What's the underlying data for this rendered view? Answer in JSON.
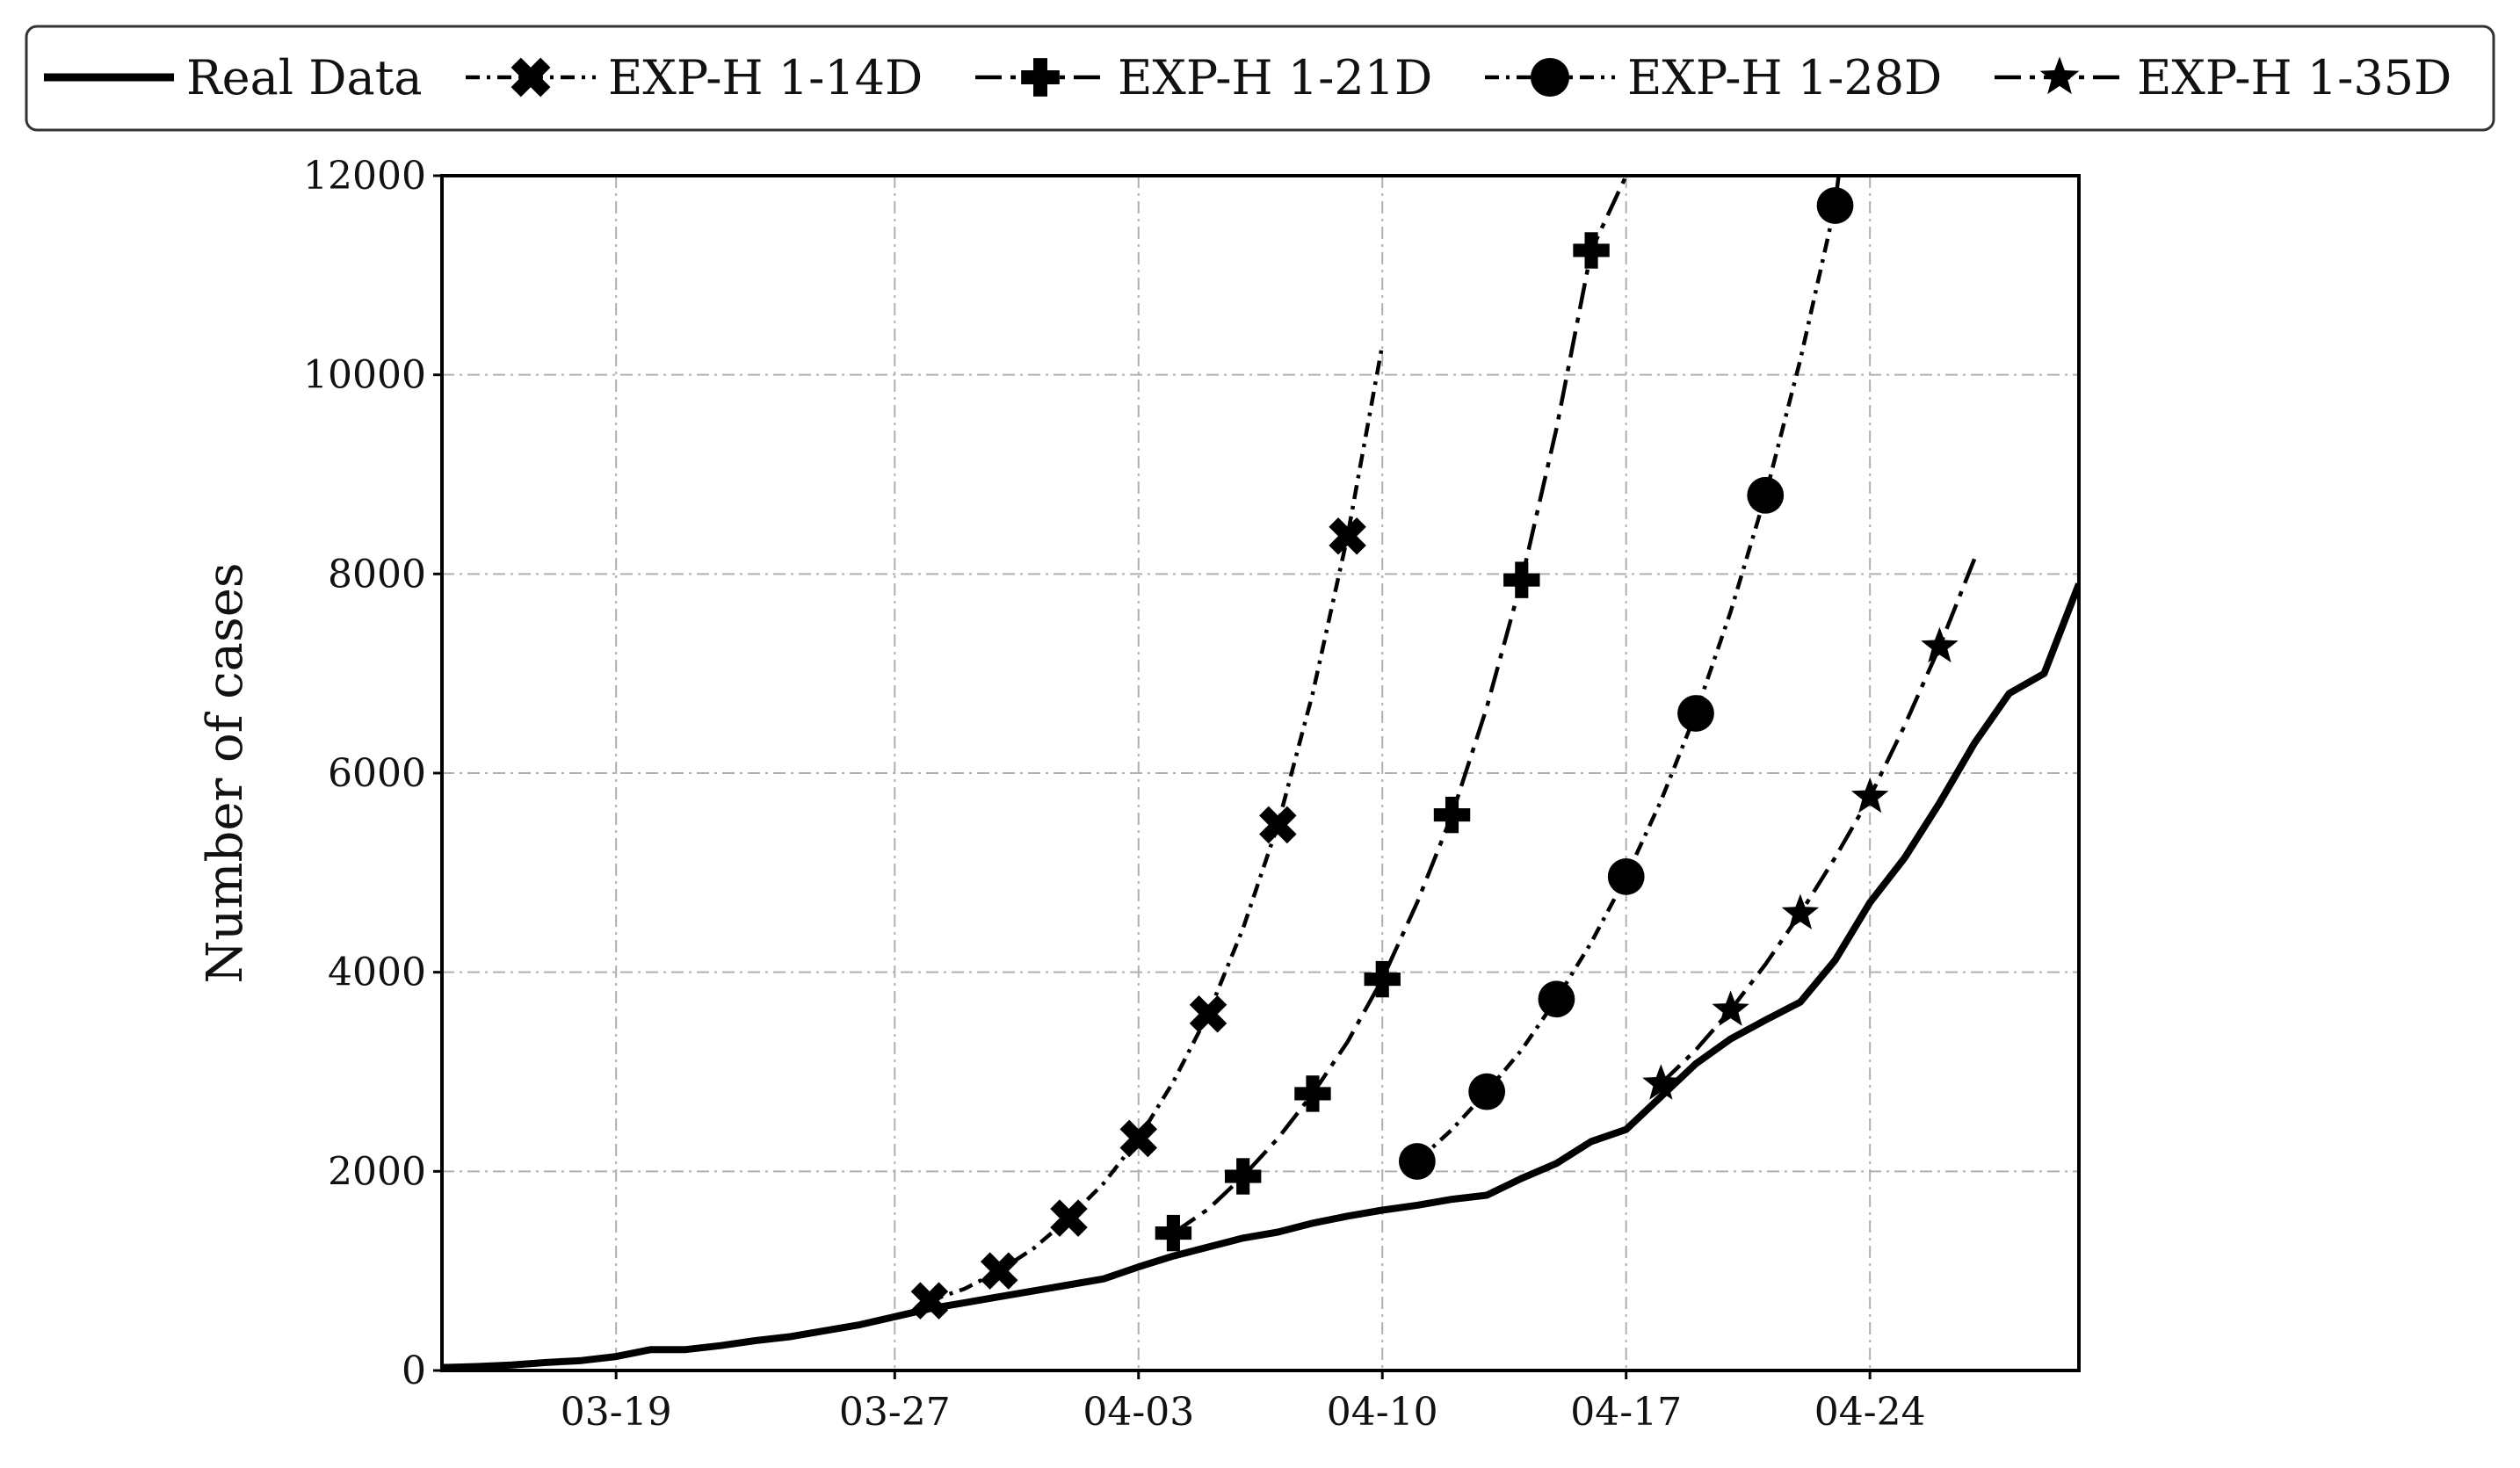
{
  "chart_data": {
    "type": "line",
    "title": "",
    "xlabel": "",
    "ylabel": "Number of cases",
    "ylim": [
      0,
      12000
    ],
    "xlim": [
      "03-14",
      "04-30"
    ],
    "x_ticks": [
      "03-19",
      "03-27",
      "04-03",
      "04-10",
      "04-17",
      "04-24"
    ],
    "y_ticks": [
      "0",
      "2000",
      "4000",
      "6000",
      "8000",
      "10000",
      "12000"
    ],
    "grid": true,
    "legend_position": "top",
    "series": [
      {
        "name": "Real Data",
        "marker": "none",
        "dash": "solid",
        "points": [
          [
            "03-14",
            30
          ],
          [
            "03-15",
            40
          ],
          [
            "03-16",
            55
          ],
          [
            "03-17",
            80
          ],
          [
            "03-18",
            100
          ],
          [
            "03-19",
            140
          ],
          [
            "03-20",
            210
          ],
          [
            "03-21",
            210
          ],
          [
            "03-22",
            250
          ],
          [
            "03-23",
            300
          ],
          [
            "03-24",
            340
          ],
          [
            "03-25",
            400
          ],
          [
            "03-26",
            460
          ],
          [
            "03-27",
            540
          ],
          [
            "03-28",
            620
          ],
          [
            "03-29",
            680
          ],
          [
            "03-30",
            740
          ],
          [
            "03-31",
            800
          ],
          [
            "04-01",
            860
          ],
          [
            "04-02",
            920
          ],
          [
            "04-03",
            1040
          ],
          [
            "04-04",
            1150
          ],
          [
            "04-05",
            1240
          ],
          [
            "04-06",
            1330
          ],
          [
            "04-07",
            1390
          ],
          [
            "04-08",
            1480
          ],
          [
            "04-09",
            1550
          ],
          [
            "04-10",
            1610
          ],
          [
            "04-11",
            1660
          ],
          [
            "04-12",
            1720
          ],
          [
            "04-13",
            1760
          ],
          [
            "04-14",
            1930
          ],
          [
            "04-15",
            2080
          ],
          [
            "04-16",
            2300
          ],
          [
            "04-17",
            2420
          ],
          [
            "04-18",
            2750
          ],
          [
            "04-19",
            3080
          ],
          [
            "04-20",
            3330
          ],
          [
            "04-21",
            3520
          ],
          [
            "04-22",
            3700
          ],
          [
            "04-23",
            4120
          ],
          [
            "04-24",
            4700
          ],
          [
            "04-25",
            5150
          ],
          [
            "04-26",
            5700
          ],
          [
            "04-27",
            6300
          ],
          [
            "04-28",
            6800
          ],
          [
            "04-29",
            7000
          ],
          [
            "04-30",
            7900
          ]
        ]
      },
      {
        "name": "EXP-H 1-14D",
        "marker": "x-filled",
        "dash": "dashdot-fine",
        "marker_dates": [
          "03-28",
          "03-30",
          "04-01",
          "04-03",
          "04-05",
          "04-07",
          "04-09"
        ],
        "points": [
          [
            "03-28",
            700
          ],
          [
            "03-29",
            820
          ],
          [
            "03-30",
            1000
          ],
          [
            "03-31",
            1230
          ],
          [
            "04-01",
            1530
          ],
          [
            "04-02",
            1880
          ],
          [
            "04-03",
            2330
          ],
          [
            "04-04",
            2900
          ],
          [
            "04-05",
            3580
          ],
          [
            "04-06",
            4440
          ],
          [
            "04-07",
            5480
          ],
          [
            "04-08",
            6800
          ],
          [
            "04-09",
            8380
          ],
          [
            "04-10",
            10300
          ]
        ]
      },
      {
        "name": "EXP-H 1-21D",
        "marker": "plus-filled",
        "dash": "dashdot",
        "marker_dates": [
          "04-04",
          "04-06",
          "04-08",
          "04-10",
          "04-12",
          "04-14",
          "04-16"
        ],
        "points": [
          [
            "04-04",
            1380
          ],
          [
            "04-05",
            1620
          ],
          [
            "04-06",
            1950
          ],
          [
            "04-07",
            2330
          ],
          [
            "04-08",
            2780
          ],
          [
            "04-09",
            3300
          ],
          [
            "04-10",
            3930
          ],
          [
            "04-11",
            4700
          ],
          [
            "04-12",
            5580
          ],
          [
            "04-13",
            6660
          ],
          [
            "04-14",
            7940
          ],
          [
            "04-15",
            9460
          ],
          [
            "04-16",
            11250
          ],
          [
            "04-17",
            12000
          ]
        ]
      },
      {
        "name": "EXP-H 1-28D",
        "marker": "circle",
        "dash": "dashdot-fine",
        "marker_dates": [
          "04-11",
          "04-13",
          "04-15",
          "04-17",
          "04-19",
          "04-21",
          "04-23"
        ],
        "points": [
          [
            "04-11",
            2100
          ],
          [
            "04-12",
            2420
          ],
          [
            "04-13",
            2800
          ],
          [
            "04-14",
            3220
          ],
          [
            "04-15",
            3730
          ],
          [
            "04-16",
            4300
          ],
          [
            "04-17",
            4960
          ],
          [
            "04-18",
            5720
          ],
          [
            "04-19",
            6600
          ],
          [
            "04-20",
            7620
          ],
          [
            "04-21",
            8790
          ],
          [
            "04-22",
            10150
          ],
          [
            "04-23",
            11700
          ],
          [
            "04-23.1",
            12000
          ]
        ]
      },
      {
        "name": "EXP-H 1-35D",
        "marker": "star",
        "dash": "dashdot",
        "marker_dates": [
          "04-18",
          "04-20",
          "04-22",
          "04-24",
          "04-26"
        ],
        "points": [
          [
            "04-18",
            2880
          ],
          [
            "04-19",
            3220
          ],
          [
            "04-20",
            3620
          ],
          [
            "04-21",
            4080
          ],
          [
            "04-22",
            4590
          ],
          [
            "04-23",
            5150
          ],
          [
            "04-24",
            5760
          ],
          [
            "04-25",
            6480
          ],
          [
            "04-26",
            7270
          ],
          [
            "04-27",
            8150
          ]
        ]
      }
    ]
  }
}
